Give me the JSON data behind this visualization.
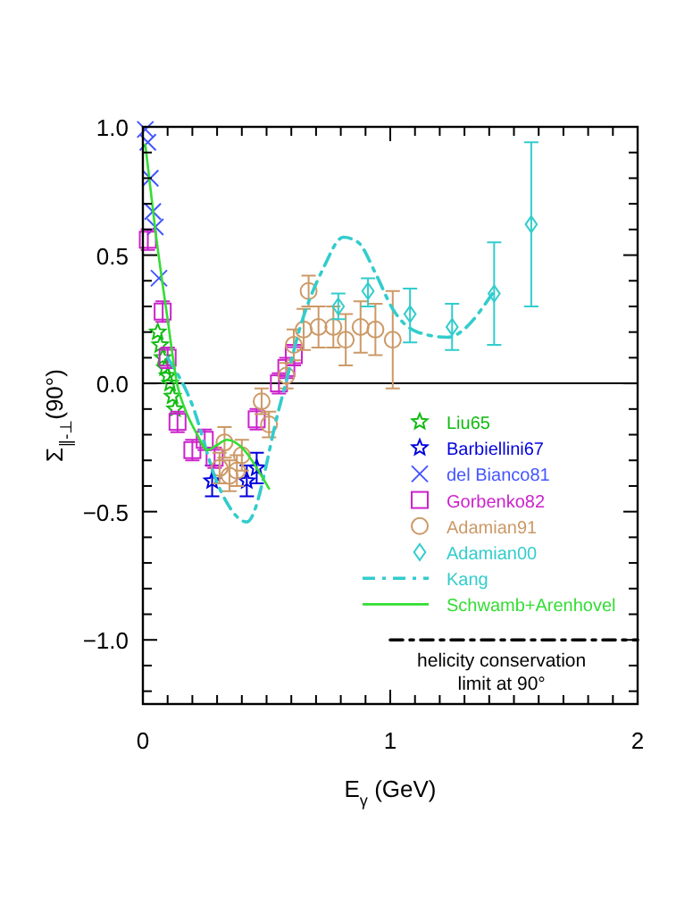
{
  "chart_data": {
    "type": "scatter",
    "xlabel": "E$_{γ}$ (GeV)",
    "ylabel": "Σ$_{∥-⊥}$(90°)",
    "xlim": [
      0,
      2
    ],
    "ylim": [
      -1.25,
      1.0
    ],
    "xticks": [
      0,
      {
        "value": 0.1,
        "label": null
      },
      {
        "value": 0.2,
        "label": null
      },
      {
        "value": 0.3,
        "label": null
      },
      {
        "value": 0.4,
        "label": null
      },
      {
        "value": 0.5,
        "label": null
      },
      {
        "value": 0.6,
        "label": null
      },
      {
        "value": 0.7,
        "label": null
      },
      {
        "value": 0.8,
        "label": null
      },
      {
        "value": 0.9,
        "label": null
      },
      1,
      {
        "value": 1.1,
        "label": null
      },
      {
        "value": 1.2,
        "label": null
      },
      {
        "value": 1.3,
        "label": null
      },
      {
        "value": 1.4,
        "label": null
      },
      {
        "value": 1.5,
        "label": null
      },
      {
        "value": 1.6,
        "label": null
      },
      {
        "value": 1.7,
        "label": null
      },
      {
        "value": 1.8,
        "label": null
      },
      {
        "value": 1.9,
        "label": null
      },
      2
    ],
    "yticks": [
      {
        "value": -1.2,
        "label": null
      },
      {
        "value": -1.1,
        "label": null
      },
      {
        "value": -1.0,
        "label": "−1.0"
      },
      {
        "value": -0.9,
        "label": null
      },
      {
        "value": -0.8,
        "label": null
      },
      {
        "value": -0.7,
        "label": null
      },
      {
        "value": -0.6,
        "label": null
      },
      {
        "value": -0.5,
        "label": "−0.5"
      },
      {
        "value": -0.4,
        "label": null
      },
      {
        "value": -0.3,
        "label": null
      },
      {
        "value": -0.2,
        "label": null
      },
      {
        "value": -0.1,
        "label": null
      },
      {
        "value": 0,
        "label": "0.0"
      },
      {
        "value": 0.1,
        "label": null
      },
      {
        "value": 0.2,
        "label": null
      },
      {
        "value": 0.3,
        "label": null
      },
      {
        "value": 0.4,
        "label": null
      },
      {
        "value": 0.5,
        "label": "0.5"
      },
      {
        "value": 0.6,
        "label": null
      },
      {
        "value": 0.7,
        "label": null
      },
      {
        "value": 0.8,
        "label": null
      },
      {
        "value": 0.9,
        "label": null
      },
      {
        "value": 1.0,
        "label": "1.0"
      }
    ],
    "grid": false,
    "legend": "right",
    "ref_lines": [
      {
        "axis": "y",
        "value": 0,
        "color": "#000000",
        "line_style": "solid"
      }
    ],
    "annotations": [
      {
        "text": "helicity conservation\nlimit at 90°",
        "x": 1.45,
        "y": -1.0
      }
    ],
    "series": [
      {
        "name": "Liu65",
        "marker": "star",
        "color": "#11bb11",
        "x": [
          0.06,
          0.07,
          0.08,
          0.09,
          0.1,
          0.11,
          0.12,
          0.13
        ],
        "values": [
          0.2,
          0.15,
          0.1,
          0.06,
          0.03,
          0.0,
          -0.05,
          -0.1
        ]
      },
      {
        "name": "Barbiellini67",
        "marker": "star",
        "color": "#0000dd",
        "x": [
          0.28,
          0.42,
          0.46
        ],
        "values": [
          -0.38,
          -0.38,
          -0.33
        ],
        "errors": [
          0.06,
          0.06,
          0.06
        ]
      },
      {
        "name": "del Bianco81",
        "marker": "cross",
        "color": "#4455ff",
        "x": [
          0.01,
          0.02,
          0.03,
          0.04,
          0.05,
          0.065
        ],
        "values": [
          0.99,
          0.94,
          0.8,
          0.67,
          0.61,
          0.41
        ]
      },
      {
        "name": "Gorbenko82",
        "marker": "square",
        "color": "#cc22cc",
        "x": [
          0.02,
          0.08,
          0.1,
          0.14,
          0.2,
          0.25,
          0.29,
          0.46,
          0.55,
          0.58,
          0.61
        ],
        "values": [
          0.56,
          0.28,
          0.1,
          -0.15,
          -0.26,
          -0.22,
          -0.29,
          -0.14,
          0.0,
          0.06,
          0.11
        ],
        "errors": [
          0.04,
          0.04,
          0.04,
          0.04,
          0.04,
          0.04,
          0.04,
          0.04,
          0.04,
          0.04,
          0.04
        ]
      },
      {
        "name": "Adamian91",
        "marker": "circle",
        "color": "#cc9966",
        "x": [
          0.31,
          0.33,
          0.35,
          0.38,
          0.4,
          0.48,
          0.51,
          0.58,
          0.61,
          0.65,
          0.67,
          0.71,
          0.77,
          0.82,
          0.88,
          0.94,
          1.01
        ],
        "values": [
          -0.33,
          -0.23,
          -0.36,
          -0.34,
          -0.28,
          -0.07,
          -0.16,
          0.03,
          0.15,
          0.21,
          0.36,
          0.22,
          0.22,
          0.17,
          0.22,
          0.21,
          0.17
        ],
        "errors": [
          0.06,
          0.06,
          0.06,
          0.06,
          0.06,
          0.05,
          0.05,
          0.05,
          0.06,
          0.08,
          0.06,
          0.08,
          0.08,
          0.1,
          0.1,
          0.1,
          0.19
        ]
      },
      {
        "name": "Adamian00",
        "marker": "diamond",
        "color": "#33cccc",
        "x": [
          0.79,
          0.91,
          1.08,
          1.25,
          1.42,
          1.57
        ],
        "values": [
          0.3,
          0.36,
          0.27,
          0.22,
          0.35,
          0.62
        ],
        "errors": [
          0.05,
          [
            0.3,
            0.41
          ],
          [
            0.16,
            0.37
          ],
          [
            0.13,
            0.31
          ],
          [
            0.15,
            0.55
          ],
          [
            0.3,
            0.94
          ]
        ]
      },
      {
        "name": "Kang",
        "type": "line",
        "line_style": "dashed",
        "marker": "none",
        "color": "#33cccc",
        "x": [
          0.1,
          0.19,
          0.31,
          0.42,
          0.55,
          0.58,
          0.63,
          0.73,
          0.81,
          0.87,
          0.94,
          1.01,
          1.11,
          1.23,
          1.42
        ],
        "values": [
          0.1,
          -0.06,
          -0.41,
          -0.54,
          -0.1,
          0.01,
          0.2,
          0.45,
          0.57,
          0.55,
          0.43,
          0.29,
          0.2,
          0.18,
          0.36
        ]
      },
      {
        "name": "Schwamb+Arenhovel",
        "type": "line",
        "line_style": "solid",
        "marker": "none",
        "color": "#33dd33",
        "x": [
          0.01,
          0.05,
          0.1,
          0.14,
          0.17,
          0.22,
          0.26,
          0.3,
          0.34,
          0.41,
          0.46,
          0.51
        ],
        "values": [
          0.93,
          0.6,
          0.25,
          -0.01,
          -0.1,
          -0.2,
          -0.26,
          -0.24,
          -0.22,
          -0.26,
          -0.33,
          -0.41
        ]
      },
      {
        "type": "line",
        "line_style": "dashed",
        "marker": "none",
        "color": "#000000",
        "x": [
          1,
          2
        ],
        "values": [
          -1,
          -1
        ]
      }
    ]
  }
}
